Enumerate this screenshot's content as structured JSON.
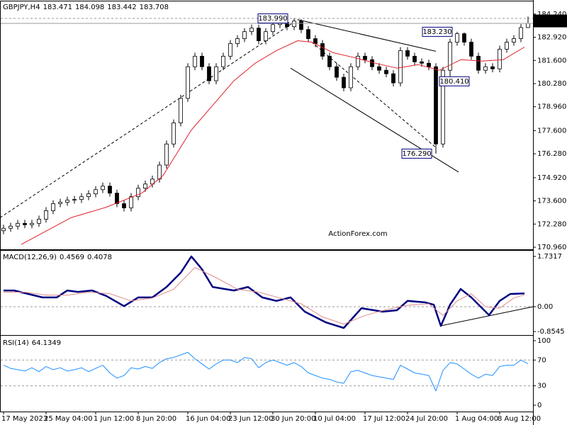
{
  "chart_data": [
    {
      "type": "candlestick",
      "symbol": "GBPJPY,H4",
      "watermark": "ActionForex.com",
      "open": [
        171.9,
        172.04,
        172.16,
        172.32,
        172.24,
        172.32,
        172.56,
        173.04,
        173.44,
        173.52,
        173.64,
        173.68,
        173.84,
        174.0,
        174.24,
        174.44,
        174.04,
        173.44,
        173.2,
        173.84,
        174.32,
        174.56,
        174.84,
        175.64,
        176.84,
        178.04,
        179.44,
        181.24,
        181.84,
        181.24,
        180.44,
        181.24,
        181.84,
        182.56,
        182.84,
        183.24,
        183.44,
        182.72,
        183.24,
        183.64,
        183.76,
        183.52,
        183.84,
        183.36,
        182.84,
        182.56,
        181.84,
        181.24,
        180.64,
        180.04,
        181.24,
        181.84,
        181.64,
        181.24,
        181.04,
        180.84,
        180.32,
        182.16,
        181.84,
        181.52,
        181.44,
        181.24,
        176.84,
        181.04,
        182.64,
        183.12,
        182.64,
        181.84,
        181.04,
        181.24,
        181.12,
        182.24,
        182.64,
        182.84,
        183.471
      ],
      "high": [
        172.24,
        172.36,
        172.52,
        172.52,
        172.52,
        172.76,
        173.24,
        173.64,
        173.72,
        173.84,
        173.88,
        174.04,
        174.2,
        174.44,
        174.64,
        174.64,
        174.24,
        173.64,
        174.04,
        174.52,
        174.76,
        175.04,
        175.84,
        177.04,
        178.24,
        179.64,
        181.44,
        182.04,
        182.04,
        181.44,
        181.44,
        182.04,
        182.76,
        183.04,
        183.44,
        183.64,
        183.64,
        183.44,
        183.84,
        183.9,
        183.9,
        183.99,
        183.94,
        183.56,
        183.04,
        182.76,
        182.04,
        181.44,
        180.84,
        181.44,
        182.04,
        182.04,
        181.84,
        181.44,
        181.24,
        181.04,
        182.36,
        182.36,
        182.04,
        181.72,
        181.64,
        181.44,
        181.24,
        182.84,
        183.23,
        183.2,
        182.84,
        182.04,
        181.44,
        181.44,
        182.44,
        182.84,
        183.04,
        183.67,
        184.098
      ],
      "low": [
        171.7,
        171.84,
        171.96,
        172.04,
        172.04,
        172.12,
        172.36,
        172.84,
        173.24,
        173.32,
        173.44,
        173.48,
        173.64,
        173.8,
        174.04,
        173.84,
        173.24,
        173.0,
        173.0,
        173.64,
        174.12,
        174.36,
        174.64,
        175.44,
        176.64,
        177.84,
        179.24,
        181.04,
        181.04,
        180.24,
        180.24,
        181.04,
        181.64,
        182.36,
        182.64,
        183.04,
        182.52,
        182.52,
        183.04,
        183.44,
        183.32,
        183.32,
        183.16,
        182.64,
        182.36,
        181.64,
        181.04,
        180.44,
        179.84,
        179.84,
        181.04,
        181.44,
        181.04,
        180.84,
        180.64,
        180.12,
        180.12,
        181.64,
        181.32,
        181.24,
        181.04,
        176.29,
        176.64,
        180.41,
        182.44,
        182.44,
        181.64,
        180.84,
        180.84,
        180.92,
        180.92,
        182.04,
        182.44,
        182.64,
        183.442
      ],
      "close": [
        172.04,
        172.16,
        172.32,
        172.24,
        172.32,
        172.56,
        173.04,
        173.44,
        173.52,
        173.64,
        173.68,
        173.84,
        174.0,
        174.24,
        174.44,
        174.04,
        173.44,
        173.2,
        173.84,
        174.32,
        174.56,
        174.84,
        175.64,
        176.84,
        178.04,
        179.44,
        181.24,
        181.84,
        181.24,
        180.44,
        181.24,
        181.84,
        182.56,
        182.84,
        183.24,
        183.44,
        182.72,
        183.24,
        183.64,
        183.76,
        183.52,
        183.84,
        183.36,
        182.84,
        182.56,
        181.84,
        181.24,
        180.64,
        180.04,
        181.24,
        181.84,
        181.64,
        181.24,
        181.04,
        180.84,
        180.32,
        182.16,
        181.84,
        181.52,
        181.44,
        181.24,
        176.84,
        181.04,
        182.64,
        183.12,
        182.64,
        181.84,
        181.04,
        181.24,
        181.12,
        182.24,
        182.64,
        182.84,
        183.471,
        183.708
      ],
      "up_color": "#ffffff",
      "down_color": "#000000",
      "wick_color": "#000000",
      "moving_average": {
        "color": "#e0202a",
        "x": [
          2.5,
          9.5,
          14.5,
          19.5,
          22.5,
          26.5,
          29.5,
          32.5,
          35.5,
          38.5,
          41.5,
          43.5,
          46.5,
          49.5,
          52.5,
          55.5,
          58.5,
          61.5,
          64.5,
          67.5,
          70.5,
          73.5
        ],
        "values": [
          171.12,
          172.64,
          173.24,
          174.04,
          175.04,
          177.64,
          179.04,
          180.44,
          181.44,
          182.16,
          182.72,
          182.64,
          182.04,
          181.76,
          181.44,
          181.16,
          181.36,
          181.04,
          181.64,
          181.56,
          181.64,
          182.36
        ]
      },
      "xlim": [
        -0.5,
        74.7
      ],
      "xticks": [
        {
          "value": 0,
          "label": "17 May 2023"
        },
        {
          "value": 6,
          "label": "25 May 04:00"
        },
        {
          "value": 13,
          "label": "1 Jun 12:00"
        },
        {
          "value": 19,
          "label": "8 Jun 20:00"
        },
        {
          "value": 26,
          "label": "16 Jun 04:00"
        },
        {
          "value": 32,
          "label": "23 Jun 12:00"
        },
        {
          "value": 38,
          "label": "30 Jun 20:00"
        },
        {
          "value": 44,
          "label": "10 Jul 04:00"
        },
        {
          "value": 51,
          "label": "17 Jul 12:00"
        },
        {
          "value": 57,
          "label": "24 Jul 20:00"
        },
        {
          "value": 64,
          "label": "1 Aug 04:00"
        },
        {
          "value": 70,
          "label": "8 Aug 12:00"
        }
      ],
      "ylim": [
        170.84,
        184.88
      ],
      "yticks": [
        {
          "value": 184.24,
          "label": "184.240"
        },
        {
          "value": 182.92,
          "label": "182.920"
        },
        {
          "value": 181.6,
          "label": "181.600"
        },
        {
          "value": 180.28,
          "label": "180.280"
        },
        {
          "value": 178.96,
          "label": "178.960"
        },
        {
          "value": 177.6,
          "label": "177.600"
        },
        {
          "value": 176.28,
          "label": "176.280"
        },
        {
          "value": 174.92,
          "label": "174.920"
        },
        {
          "value": 173.6,
          "label": "173.600"
        },
        {
          "value": 172.28,
          "label": "172.280"
        },
        {
          "value": 170.96,
          "label": "170.960"
        }
      ],
      "levels": [
        {
          "value": 183.99,
          "label": "183.990"
        }
      ],
      "annotations": [
        {
          "x": 38,
          "value": 183.99,
          "label": "183.990"
        },
        {
          "x": 61.2,
          "value": 183.23,
          "label": "183.230"
        },
        {
          "x": 63.6,
          "value": 180.41,
          "label": "180.410"
        },
        {
          "x": 58.3,
          "value": 176.29,
          "label": "176.290"
        }
      ],
      "trendlines": [
        {
          "x": [
            -0.5,
            41.5
          ],
          "y": [
            172.64,
            183.92
          ],
          "dashed": true
        },
        {
          "x": [
            41.5,
            61
          ],
          "y": [
            183.92,
            182.12
          ],
          "dashed": false
        },
        {
          "x": [
            40.5,
            64.2
          ],
          "y": [
            181.16,
            175.24
          ],
          "dashed": false
        },
        {
          "x": [
            43.5,
            61
          ],
          "y": [
            182.64,
            176.64
          ],
          "dashed": true
        }
      ]
    },
    {
      "type": "line",
      "name": "MACD(12,26,9)",
      "series": [
        {
          "color": "#000080",
          "width": 2.5,
          "x": [
            0,
            1.5,
            3.5,
            5.5,
            7.5,
            9,
            10.5,
            12.5,
            14.5,
            17,
            19,
            21,
            23,
            25,
            26.5,
            28,
            29.5,
            32.5,
            34.5,
            36.5,
            38.5,
            40.5,
            42.5,
            45.5,
            48,
            50.5,
            53.5,
            55.5,
            57,
            59.5,
            60.7,
            61.7,
            63,
            64.5,
            66,
            68.5,
            70,
            71.5,
            73.5
          ],
          "values": [
            0.56,
            0.56,
            0.44,
            0.32,
            0.32,
            0.56,
            0.51,
            0.56,
            0.37,
            0.02,
            0.32,
            0.32,
            0.68,
            1.17,
            1.73,
            1.29,
            0.68,
            0.56,
            0.68,
            0.32,
            0.2,
            0.32,
            -0.17,
            -0.54,
            -0.73,
            -0.05,
            -0.17,
            -0.12,
            0.2,
            0.15,
            0.07,
            -0.66,
            0.07,
            0.61,
            0.32,
            -0.29,
            0.2,
            0.44,
            0.4569
          ]
        },
        {
          "color": "#e08c8c",
          "width": 1,
          "x": [
            0,
            3,
            6,
            9,
            12,
            15,
            18,
            21,
            24,
            27,
            30,
            33,
            36,
            39,
            42,
            45,
            48,
            51,
            54,
            57,
            60,
            62,
            64,
            66,
            68,
            70,
            72,
            73.5
          ],
          "values": [
            0.5,
            0.5,
            0.4,
            0.4,
            0.5,
            0.45,
            0.2,
            0.3,
            0.6,
            1.35,
            1.0,
            0.6,
            0.5,
            0.3,
            0.1,
            -0.35,
            -0.6,
            -0.3,
            -0.1,
            0.05,
            0.1,
            -0.3,
            0.2,
            0.45,
            0.0,
            -0.05,
            0.3,
            0.4078
          ]
        }
      ],
      "ylim": [
        -0.95,
        1.902
      ],
      "yticks": [
        1.7317,
        {
          "value": 0,
          "label": "0.00"
        },
        -0.8545
      ],
      "levels": [
        0
      ],
      "trendlines": [
        {
          "x": [
            61.6,
            74.7
          ],
          "y": [
            -0.66,
            0.0
          ],
          "dashed": false
        }
      ]
    },
    {
      "type": "line",
      "name": "RSI(14)",
      "series": [
        {
          "color": "#1e90ff",
          "width": 1,
          "values": [
            62,
            57,
            55,
            53,
            58,
            52,
            60,
            55,
            58,
            53,
            55,
            58,
            52,
            57,
            62,
            50,
            42,
            46,
            58,
            56,
            60,
            57,
            66,
            72,
            74,
            78,
            82,
            72,
            64,
            56,
            64,
            70,
            70,
            66,
            74,
            72,
            58,
            66,
            70,
            66,
            62,
            66,
            60,
            50,
            46,
            42,
            40,
            36,
            34,
            52,
            54,
            50,
            46,
            44,
            42,
            40,
            62,
            56,
            50,
            48,
            46,
            22,
            54,
            66,
            64,
            56,
            48,
            42,
            48,
            46,
            60,
            62,
            62,
            70,
            64.1349
          ]
        }
      ],
      "ylim": [
        -8.8,
        105.5
      ],
      "yticks": [
        100,
        70,
        30,
        0
      ],
      "levels": [
        70,
        30
      ]
    }
  ]
}
